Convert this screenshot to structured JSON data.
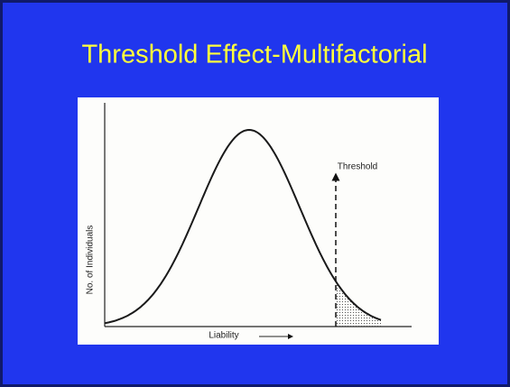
{
  "title": "Threshold Effect-Multifactorial",
  "figure": {
    "y_axis_label": "No. of Individuals",
    "x_axis_label": "Liability",
    "annotation": "Threshold"
  }
}
